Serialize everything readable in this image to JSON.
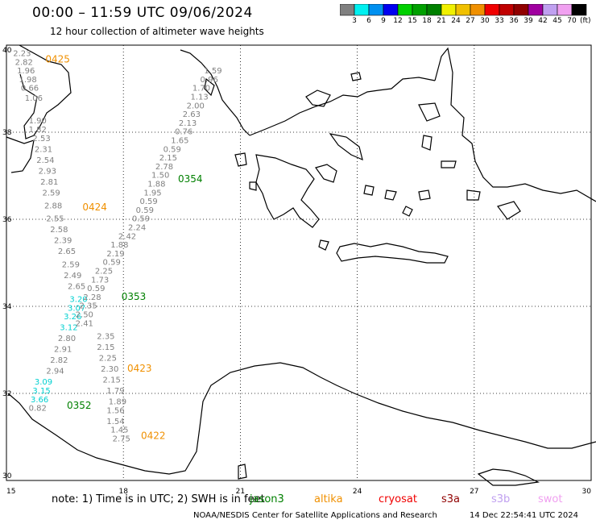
{
  "header": {
    "title": "00:00 – 11:59 UTC 09/06/2024",
    "subtitle": "12 hour collection of altimeter wave heights"
  },
  "scale": {
    "colors": [
      "#808080",
      "#00f0f0",
      "#0090f0",
      "#0000f0",
      "#00d000",
      "#00a000",
      "#008000",
      "#f0f000",
      "#f0c000",
      "#f09000",
      "#f00000",
      "#c00000",
      "#900000",
      "#a000a0",
      "#c0a0f0",
      "#f0a0f0",
      "#000000"
    ],
    "labels": [
      "3",
      "6",
      "9",
      "12",
      "15",
      "18",
      "21",
      "24",
      "27",
      "30",
      "33",
      "36",
      "39",
      "42",
      "45",
      "70"
    ],
    "unit": "(ft)"
  },
  "map": {
    "lon_ticks": [
      "15",
      "18",
      "21",
      "24",
      "27",
      "30"
    ],
    "lat_ticks": [
      "30",
      "32",
      "34",
      "36",
      "38",
      "40"
    ],
    "lon_range": [
      15,
      30
    ],
    "lat_range": [
      30,
      40
    ]
  },
  "tracks": [
    {
      "id": "0425",
      "tag": "0425",
      "color": "#f09000",
      "tag_lon": 16.0,
      "tag_lat": 39.6,
      "points": [
        {
          "lon": 15.4,
          "lat": 39.75,
          "v": "2.23",
          "c": "#808080"
        },
        {
          "lon": 15.45,
          "lat": 39.55,
          "v": "2.82",
          "c": "#808080"
        },
        {
          "lon": 15.5,
          "lat": 39.35,
          "v": "1.96",
          "c": "#808080"
        },
        {
          "lon": 15.55,
          "lat": 39.15,
          "v": "1.98",
          "c": "#808080"
        },
        {
          "lon": 15.6,
          "lat": 38.95,
          "v": "0.66",
          "c": "#808080"
        },
        {
          "lon": 15.7,
          "lat": 38.72,
          "v": "1.06",
          "c": "#808080"
        }
      ]
    },
    {
      "id": "0424",
      "tag": "0424",
      "color": "#f09000",
      "tag_lon": 16.95,
      "tag_lat": 36.2,
      "points": [
        {
          "lon": 15.8,
          "lat": 38.2,
          "v": "1.90",
          "c": "#808080"
        },
        {
          "lon": 15.8,
          "lat": 38.0,
          "v": "1.82",
          "c": "#808080"
        },
        {
          "lon": 15.9,
          "lat": 37.8,
          "v": "2.53",
          "c": "#808080"
        },
        {
          "lon": 15.95,
          "lat": 37.55,
          "v": "2.31",
          "c": "#808080"
        },
        {
          "lon": 16.0,
          "lat": 37.3,
          "v": "2.54",
          "c": "#808080"
        },
        {
          "lon": 16.05,
          "lat": 37.05,
          "v": "2.93",
          "c": "#808080"
        },
        {
          "lon": 16.1,
          "lat": 36.8,
          "v": "2.81",
          "c": "#808080"
        },
        {
          "lon": 16.15,
          "lat": 36.55,
          "v": "2.59",
          "c": "#808080"
        },
        {
          "lon": 16.2,
          "lat": 36.25,
          "v": "2.88",
          "c": "#808080"
        },
        {
          "lon": 16.25,
          "lat": 35.95,
          "v": "2.55",
          "c": "#808080"
        },
        {
          "lon": 16.35,
          "lat": 35.7,
          "v": "2.58",
          "c": "#808080"
        },
        {
          "lon": 16.45,
          "lat": 35.45,
          "v": "2.39",
          "c": "#808080"
        },
        {
          "lon": 16.55,
          "lat": 35.2,
          "v": "2.65",
          "c": "#808080"
        },
        {
          "lon": 16.65,
          "lat": 34.9,
          "v": "2.59",
          "c": "#808080"
        },
        {
          "lon": 16.7,
          "lat": 34.65,
          "v": "2.49",
          "c": "#808080"
        },
        {
          "lon": 16.8,
          "lat": 34.4,
          "v": "2.65",
          "c": "#808080"
        },
        {
          "lon": 16.85,
          "lat": 34.1,
          "v": "3.20",
          "c": "#00d0d0"
        },
        {
          "lon": 16.8,
          "lat": 33.9,
          "v": "3.07",
          "c": "#00d0d0"
        },
        {
          "lon": 16.7,
          "lat": 33.7,
          "v": "3.26",
          "c": "#00d0d0"
        },
        {
          "lon": 16.6,
          "lat": 33.45,
          "v": "3.12",
          "c": "#00d0d0"
        },
        {
          "lon": 16.55,
          "lat": 33.2,
          "v": "2.80",
          "c": "#808080"
        },
        {
          "lon": 16.45,
          "lat": 32.95,
          "v": "2.91",
          "c": "#808080"
        },
        {
          "lon": 16.35,
          "lat": 32.7,
          "v": "2.82",
          "c": "#808080"
        },
        {
          "lon": 16.25,
          "lat": 32.45,
          "v": "2.94",
          "c": "#808080"
        },
        {
          "lon": 15.95,
          "lat": 32.2,
          "v": "3.09",
          "c": "#00d0d0"
        },
        {
          "lon": 15.9,
          "lat": 32.0,
          "v": "3.15",
          "c": "#00d0d0"
        },
        {
          "lon": 15.85,
          "lat": 31.8,
          "v": "3.66",
          "c": "#00d0d0"
        },
        {
          "lon": 15.8,
          "lat": 31.6,
          "v": "0.82",
          "c": "#808080"
        }
      ]
    },
    {
      "id": "0354",
      "tag": "0354",
      "color": "#008000",
      "tag_lon": 19.4,
      "tag_lat": 36.85,
      "points": [
        {
          "lon": 20.3,
          "lat": 39.35,
          "v": "1.59",
          "c": "#808080"
        },
        {
          "lon": 20.2,
          "lat": 39.15,
          "v": "0.96",
          "c": "#808080"
        },
        {
          "lon": 20.0,
          "lat": 38.95,
          "v": "1.70",
          "c": "#808080"
        },
        {
          "lon": 19.95,
          "lat": 38.75,
          "v": "1.13",
          "c": "#808080"
        },
        {
          "lon": 19.85,
          "lat": 38.55,
          "v": "2.00",
          "c": "#808080"
        },
        {
          "lon": 19.75,
          "lat": 38.35,
          "v": "2.63",
          "c": "#808080"
        },
        {
          "lon": 19.65,
          "lat": 38.15,
          "v": "2.13",
          "c": "#808080"
        },
        {
          "lon": 19.55,
          "lat": 37.95,
          "v": "0.76",
          "c": "#808080"
        },
        {
          "lon": 19.45,
          "lat": 37.75,
          "v": "1.65",
          "c": "#808080"
        },
        {
          "lon": 19.25,
          "lat": 37.55,
          "v": "0.59",
          "c": "#808080"
        },
        {
          "lon": 19.15,
          "lat": 37.35,
          "v": "2.15",
          "c": "#808080"
        },
        {
          "lon": 19.05,
          "lat": 37.15,
          "v": "2.78",
          "c": "#808080"
        },
        {
          "lon": 18.95,
          "lat": 36.95,
          "v": "1.50",
          "c": "#808080"
        },
        {
          "lon": 18.85,
          "lat": 36.75,
          "v": "1.88",
          "c": "#808080"
        },
        {
          "lon": 18.75,
          "lat": 36.55,
          "v": "1.95",
          "c": "#808080"
        },
        {
          "lon": 18.65,
          "lat": 36.35,
          "v": "0.59",
          "c": "#808080"
        },
        {
          "lon": 18.55,
          "lat": 36.15,
          "v": "0.59",
          "c": "#808080"
        },
        {
          "lon": 18.45,
          "lat": 35.95,
          "v": "0.59",
          "c": "#808080"
        },
        {
          "lon": 18.35,
          "lat": 35.75,
          "v": "2.24",
          "c": "#808080"
        }
      ]
    },
    {
      "id": "0353",
      "tag": "0353",
      "color": "#008000",
      "tag_lon": 17.95,
      "tag_lat": 34.15,
      "points": [
        {
          "lon": 18.1,
          "lat": 35.55,
          "v": "2.42",
          "c": "#808080"
        },
        {
          "lon": 17.9,
          "lat": 35.35,
          "v": "1.88",
          "c": "#808080"
        },
        {
          "lon": 17.8,
          "lat": 35.15,
          "v": "2.19",
          "c": "#808080"
        },
        {
          "lon": 17.7,
          "lat": 34.95,
          "v": "0.59",
          "c": "#808080"
        },
        {
          "lon": 17.5,
          "lat": 34.75,
          "v": "2.25",
          "c": "#808080"
        },
        {
          "lon": 17.4,
          "lat": 34.55,
          "v": "1.73",
          "c": "#808080"
        },
        {
          "lon": 17.3,
          "lat": 34.35,
          "v": "0.59",
          "c": "#808080"
        },
        {
          "lon": 17.2,
          "lat": 34.15,
          "v": "2.28",
          "c": "#808080"
        },
        {
          "lon": 17.1,
          "lat": 33.95,
          "v": "2.35",
          "c": "#808080"
        },
        {
          "lon": 17.0,
          "lat": 33.75,
          "v": "2.50",
          "c": "#808080"
        },
        {
          "lon": 17.0,
          "lat": 33.55,
          "v": "2.41",
          "c": "#808080"
        }
      ]
    },
    {
      "id": "0423",
      "tag": "0423",
      "color": "#f09000",
      "tag_lon": 18.1,
      "tag_lat": 32.5,
      "points": [
        {
          "lon": 17.55,
          "lat": 33.25,
          "v": "2.35",
          "c": "#808080"
        },
        {
          "lon": 17.55,
          "lat": 33.0,
          "v": "2.15",
          "c": "#808080"
        },
        {
          "lon": 17.6,
          "lat": 32.75,
          "v": "2.25",
          "c": "#808080"
        },
        {
          "lon": 17.65,
          "lat": 32.5,
          "v": "2.30",
          "c": "#808080"
        },
        {
          "lon": 17.7,
          "lat": 32.25,
          "v": "2.15",
          "c": "#808080"
        },
        {
          "lon": 17.8,
          "lat": 32.0,
          "v": "1.79",
          "c": "#808080"
        },
        {
          "lon": 17.85,
          "lat": 31.75,
          "v": "1.89",
          "c": "#808080"
        }
      ]
    },
    {
      "id": "0352",
      "tag": "0352",
      "color": "#008000",
      "tag_lon": 16.55,
      "tag_lat": 31.65,
      "points": []
    },
    {
      "id": "0422",
      "tag": "0422",
      "color": "#f09000",
      "tag_lon": 18.45,
      "tag_lat": 30.95,
      "points": [
        {
          "lon": 17.8,
          "lat": 31.55,
          "v": "1.56",
          "c": "#808080"
        },
        {
          "lon": 17.8,
          "lat": 31.3,
          "v": "1.54",
          "c": "#808080"
        },
        {
          "lon": 17.9,
          "lat": 31.1,
          "v": "1.45",
          "c": "#808080"
        },
        {
          "lon": 17.95,
          "lat": 30.9,
          "v": "2.75",
          "c": "#808080"
        }
      ]
    }
  ],
  "legend": {
    "note": "note:  1) Time is in UTC;  2) SWH is in feet",
    "satellites": [
      {
        "name": "jason3",
        "color": "#008000"
      },
      {
        "name": "altika",
        "color": "#f09000"
      },
      {
        "name": "cryosat",
        "color": "#f00000"
      },
      {
        "name": "s3a",
        "color": "#900000"
      },
      {
        "name": "s3b",
        "color": "#c0a0f0"
      },
      {
        "name": "swot",
        "color": "#f0a0f0"
      }
    ]
  },
  "footer": {
    "credit": "NOAA/NESDIS Center for Satellite Applications and Research",
    "timestamp": "14 Dec 22:54:41 UTC 2024"
  }
}
